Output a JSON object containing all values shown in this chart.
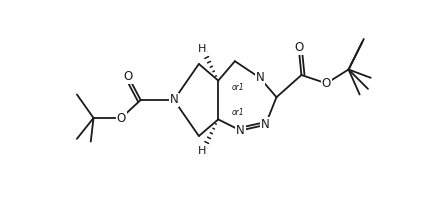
{
  "background": "#ffffff",
  "line_color": "#1a1a1a",
  "line_width": 1.3,
  "figsize": [
    4.34,
    1.98
  ],
  "dpi": 100,
  "xlim": [
    -1.05,
    1.15
  ],
  "ylim": [
    -0.55,
    0.55
  ]
}
